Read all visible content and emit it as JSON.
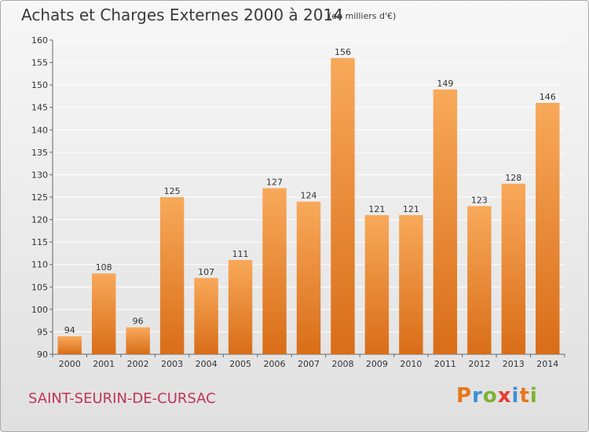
{
  "header": {
    "title": "Achats et Charges Externes 2000 à 2014",
    "subtitle": "(en milliers d'€)"
  },
  "footer": {
    "commune": "SAINT-SEURIN-DE-CURSAC",
    "logo_text": "Proxiti"
  },
  "colors": {
    "bar_top": "#f8a95a",
    "bar_bottom": "#d96d18",
    "commune_text": "#c0335a",
    "grid": "#ffffff"
  },
  "chart_data": {
    "type": "bar",
    "title": "Achats et Charges Externes 2000 à 2014",
    "subtitle": "(en milliers d'€)",
    "xlabel": "",
    "ylabel": "",
    "categories": [
      "2000",
      "2001",
      "2002",
      "2003",
      "2004",
      "2005",
      "2006",
      "2007",
      "2008",
      "2009",
      "2010",
      "2011",
      "2012",
      "2013",
      "2014"
    ],
    "values": [
      94,
      108,
      96,
      125,
      107,
      111,
      127,
      124,
      156,
      121,
      121,
      149,
      123,
      128,
      146
    ],
    "ylim": [
      90,
      160
    ],
    "yticks": [
      90,
      95,
      100,
      105,
      110,
      115,
      120,
      125,
      130,
      135,
      140,
      145,
      150,
      155,
      160
    ],
    "grid": true,
    "legend": "none"
  }
}
